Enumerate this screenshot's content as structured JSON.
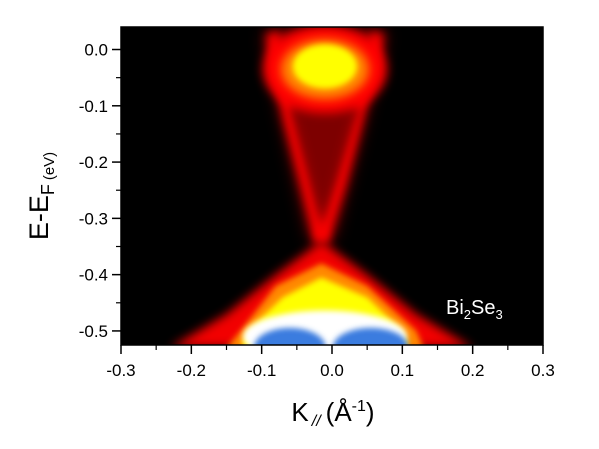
{
  "chart_data": {
    "type": "heatmap",
    "title": "",
    "xlabel": {
      "main": "K",
      "sub": "//",
      "open": "(Å",
      "sup": "-1",
      "close": ")"
    },
    "ylabel": {
      "main": "E-E",
      "sub": "F",
      "unit": "(eV)"
    },
    "xlim": [
      -0.3,
      0.3
    ],
    "ylim": [
      -0.525,
      0.04
    ],
    "xticks": [
      -0.3,
      -0.2,
      -0.1,
      0.0,
      0.1,
      0.2,
      0.3
    ],
    "xtick_labels": [
      "-0.3",
      "-0.2",
      "-0.1",
      "0.0",
      "0.1",
      "0.2",
      "0.3"
    ],
    "yticks": [
      0.0,
      -0.1,
      -0.2,
      -0.3,
      -0.4,
      -0.5
    ],
    "ytick_labels": [
      "0.0",
      "-0.1",
      "-0.2",
      "-0.3",
      "-0.4",
      "-0.5"
    ],
    "annotation": {
      "pre": "Bi",
      "sub1": "2",
      "mid": "Se",
      "sub2": "3"
    },
    "dirac_point": {
      "k": -0.015,
      "e": -0.34
    },
    "colormap": [
      "#000000",
      "#ff0000",
      "#ffff00",
      "#ffffff",
      "#3a7cdf"
    ],
    "frame_color": "#000000"
  }
}
